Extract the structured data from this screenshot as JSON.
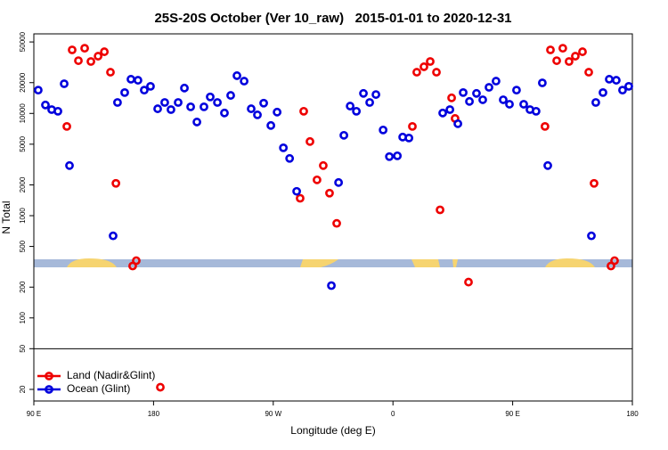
{
  "chart_data": {
    "type": "scatter",
    "title": "25S-20S October (Ver 10_raw)   2015-01-01 to 2020-12-31",
    "x_label": "Longitude (deg E)",
    "y_label": "N Total",
    "xlim": [
      90,
      540
    ],
    "xticks": [
      {
        "value": 90,
        "label": "90 E"
      },
      {
        "value": 180,
        "label": "180"
      },
      {
        "value": 270,
        "label": "90 W"
      },
      {
        "value": 360,
        "label": "0"
      },
      {
        "value": 450,
        "label": "90 E"
      },
      {
        "value": 540,
        "label": "180"
      }
    ],
    "ylim": [
      15.4,
      60000
    ],
    "log_y": true,
    "yticks": [
      20,
      50,
      100,
      200,
      500,
      1000,
      2000,
      5000,
      10000,
      20000,
      50000
    ],
    "hline": 50,
    "legend": "lower left",
    "series": [
      {
        "name": "Land (Nadir&Glint)",
        "color": "#ee0000",
        "x": [
          114.8,
          118.8,
          123.5,
          128.2,
          132.9,
          138.3,
          143.0,
          147.6,
          151.7,
          164.3,
          167.0,
          185.1,
          290.2,
          292.9,
          297.6,
          302.9,
          307.6,
          312.3,
          317.7,
          374.6,
          377.9,
          383.3,
          388.0,
          392.7,
          395.4,
          404.1,
          406.7,
          416.8,
          474.3,
          478.4,
          483.1,
          487.7,
          492.4,
          497.1,
          502.5,
          507.2,
          511.2,
          523.9,
          526.6
        ],
        "values": [
          7460,
          41800,
          32800,
          43400,
          32200,
          36300,
          40100,
          25300,
          2070,
          322,
          363,
          21,
          1480,
          10500,
          5310,
          2240,
          3090,
          1660,
          841,
          7460,
          25300,
          28600,
          32200,
          25300,
          1140,
          14200,
          8930,
          224,
          7460,
          41800,
          32800,
          43400,
          32200,
          36300,
          40100,
          25300,
          2070,
          322,
          363
        ]
      },
      {
        "name": "Ocean (Glint)",
        "color": "#0000dd",
        "x": [
          93.3,
          98.7,
          103.4,
          108.1,
          112.8,
          116.8,
          149.6,
          152.9,
          158.3,
          163.0,
          168.3,
          173.0,
          177.7,
          183.1,
          188.4,
          193.1,
          198.5,
          203.2,
          207.9,
          212.6,
          217.9,
          222.6,
          228.0,
          233.3,
          238.0,
          242.7,
          248.1,
          253.4,
          258.1,
          262.8,
          268.2,
          272.9,
          277.6,
          282.3,
          287.6,
          313.7,
          319.1,
          323.1,
          327.8,
          332.5,
          337.8,
          342.5,
          347.2,
          352.6,
          357.3,
          363.3,
          367.3,
          372.0,
          397.4,
          402.8,
          408.8,
          412.8,
          417.5,
          422.8,
          427.5,
          432.2,
          437.5,
          442.9,
          447.6,
          452.9,
          458.3,
          463.0,
          467.6,
          472.3,
          476.4,
          509.2,
          512.5,
          517.9,
          522.6,
          527.9,
          532.6,
          537.3
        ],
        "values": [
          16900,
          12100,
          10900,
          10500,
          19500,
          3090,
          635,
          12800,
          16000,
          21600,
          21100,
          16900,
          18400,
          11100,
          12800,
          10900,
          12800,
          17700,
          11600,
          8240,
          11600,
          14500,
          12800,
          10100,
          15000,
          23400,
          20700,
          11100,
          9680,
          12600,
          7620,
          10300,
          4610,
          3630,
          1730,
          207,
          2110,
          6110,
          11800,
          10500,
          15700,
          12800,
          15300,
          6890,
          3780,
          3850,
          5870,
          5750,
          10100,
          10900,
          7930,
          16000,
          13100,
          15700,
          13600,
          18000,
          20700,
          13600,
          12300,
          16900,
          12300,
          10900,
          10500,
          19900,
          3090,
          635,
          12800,
          16000,
          21600,
          21100,
          16900,
          18400
        ]
      }
    ]
  }
}
